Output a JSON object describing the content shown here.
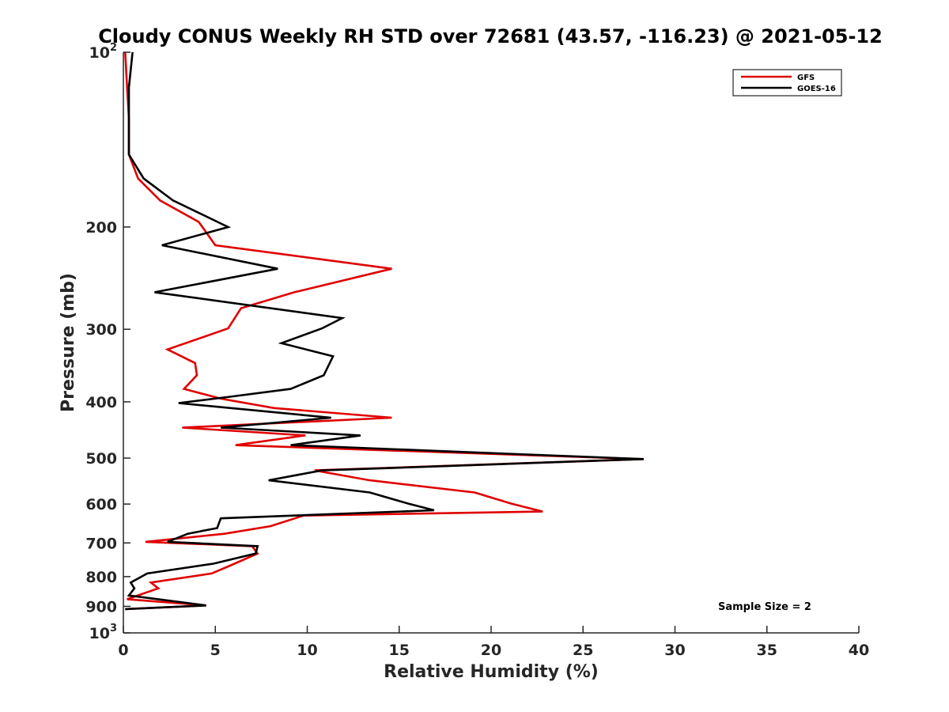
{
  "chart_data": {
    "type": "line",
    "title": "Cloudy CONUS Weekly RH STD over 72681 (43.57, -116.23) @ 2021-05-12",
    "xlabel": "Relative Humidity (%)",
    "ylabel": "Pressure (mb)",
    "xlim": [
      0,
      40
    ],
    "ylim": [
      100,
      1000
    ],
    "y_scale": "log",
    "y_reversed": true,
    "grid": false,
    "legend_placement": "top-right",
    "xticks": [
      "0",
      "5",
      "10",
      "15",
      "20",
      "25",
      "30",
      "35",
      "40"
    ],
    "xtick_values": [
      0,
      5,
      10,
      15,
      20,
      25,
      30,
      35,
      40
    ],
    "yticks": [
      {
        "value": 100,
        "base": "10",
        "exp": "2"
      },
      {
        "value": 200,
        "label": "200"
      },
      {
        "value": 300,
        "label": "300"
      },
      {
        "value": 400,
        "label": "400"
      },
      {
        "value": 500,
        "label": "500"
      },
      {
        "value": 600,
        "label": "600"
      },
      {
        "value": 700,
        "label": "700"
      },
      {
        "value": 800,
        "label": "800"
      },
      {
        "value": 900,
        "label": "900"
      },
      {
        "value": 1000,
        "base": "10",
        "exp": "3"
      }
    ],
    "series": [
      {
        "name": "GFS",
        "color": "#e00000",
        "points": [
          [
            0.1,
            100
          ],
          [
            0.2,
            115
          ],
          [
            0.3,
            130
          ],
          [
            0.3,
            150
          ],
          [
            0.8,
            165
          ],
          [
            2.0,
            180
          ],
          [
            4.1,
            196
          ],
          [
            5.0,
            215
          ],
          [
            14.6,
            236
          ],
          [
            9.3,
            259
          ],
          [
            6.4,
            276
          ],
          [
            5.7,
            299
          ],
          [
            2.4,
            325
          ],
          [
            3.9,
            343
          ],
          [
            4.0,
            360
          ],
          [
            3.3,
            380
          ],
          [
            5.3,
            395
          ],
          [
            8.2,
            410
          ],
          [
            14.6,
            426
          ],
          [
            3.2,
            443
          ],
          [
            9.9,
            457
          ],
          [
            6.1,
            475
          ],
          [
            28.3,
            502
          ],
          [
            10.4,
            525
          ],
          [
            13.4,
            546
          ],
          [
            19.1,
            573
          ],
          [
            21.1,
            599
          ],
          [
            22.8,
            618
          ],
          [
            9.8,
            628
          ],
          [
            8.0,
            655
          ],
          [
            5.5,
            675
          ],
          [
            1.2,
            697
          ],
          [
            7.0,
            709
          ],
          [
            7.3,
            730
          ],
          [
            5.8,
            766
          ],
          [
            4.8,
            790
          ],
          [
            1.5,
            819
          ],
          [
            1.9,
            838
          ],
          [
            0.2,
            875
          ],
          [
            4.5,
            897
          ],
          [
            0.1,
            910
          ]
        ]
      },
      {
        "name": "GOES-16",
        "color": "#000000",
        "points": [
          [
            0.5,
            100
          ],
          [
            0.3,
            115
          ],
          [
            0.3,
            150
          ],
          [
            1.1,
            165
          ],
          [
            2.7,
            180
          ],
          [
            5.7,
            200
          ],
          [
            2.1,
            215
          ],
          [
            8.4,
            236
          ],
          [
            1.7,
            259
          ],
          [
            11.9,
            287
          ],
          [
            10.8,
            299
          ],
          [
            8.6,
            317
          ],
          [
            11.4,
            334
          ],
          [
            10.9,
            360
          ],
          [
            9.1,
            380
          ],
          [
            5.8,
            392
          ],
          [
            3.0,
            402
          ],
          [
            11.3,
            426
          ],
          [
            5.3,
            443
          ],
          [
            12.9,
            457
          ],
          [
            9.1,
            475
          ],
          [
            28.3,
            502
          ],
          [
            10.8,
            525
          ],
          [
            7.9,
            546
          ],
          [
            13.4,
            573
          ],
          [
            15.5,
            599
          ],
          [
            16.9,
            615
          ],
          [
            5.3,
            635
          ],
          [
            5.1,
            660
          ],
          [
            3.5,
            675
          ],
          [
            2.4,
            697
          ],
          [
            7.3,
            709
          ],
          [
            7.2,
            730
          ],
          [
            4.9,
            760
          ],
          [
            1.3,
            790
          ],
          [
            0.4,
            819
          ],
          [
            0.6,
            838
          ],
          [
            0.3,
            862
          ],
          [
            4.5,
            897
          ],
          [
            0.1,
            910
          ]
        ]
      }
    ],
    "annotations": [
      "Sample Size = 2"
    ]
  }
}
